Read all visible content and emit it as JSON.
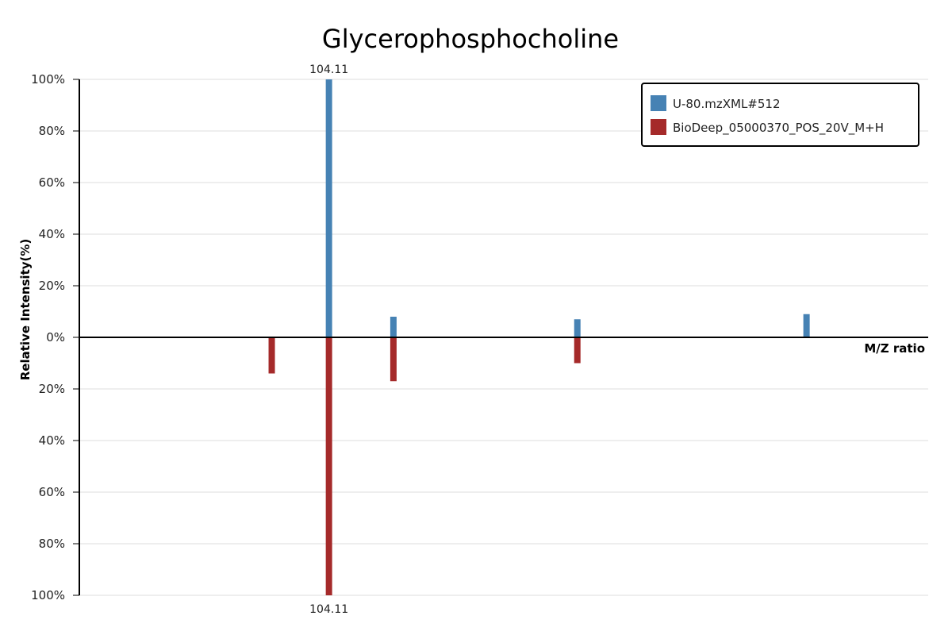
{
  "chart_data": {
    "type": "bar",
    "title": "Glycerophosphocholine",
    "xlabel": "M/Z ratio",
    "ylabel": "Relative Intensity(%)",
    "y_ticks_top": [
      "100%",
      "80%",
      "60%",
      "40%",
      "20%",
      "0%"
    ],
    "y_ticks_bottom": [
      "20%",
      "40%",
      "60%",
      "80%",
      "100%"
    ],
    "ylim": [
      -100,
      100
    ],
    "xlim": [
      60,
      210
    ],
    "grid": true,
    "legend_position": "top-right",
    "series": [
      {
        "name": "U-80.mzXML#512",
        "color": "#4682b4",
        "direction": "up",
        "peaks": [
          {
            "mz": 104.11,
            "intensity": 100,
            "label": "104.11"
          },
          {
            "mz": 115.5,
            "intensity": 8,
            "label": ""
          },
          {
            "mz": 148.0,
            "intensity": 7,
            "label": ""
          },
          {
            "mz": 188.5,
            "intensity": 9,
            "label": ""
          }
        ]
      },
      {
        "name": "BioDeep_05000370_POS_20V_M+H",
        "color": "#a52a2a",
        "direction": "down",
        "peaks": [
          {
            "mz": 94.0,
            "intensity": 14,
            "label": ""
          },
          {
            "mz": 104.11,
            "intensity": 100,
            "label": "104.11"
          },
          {
            "mz": 115.5,
            "intensity": 17,
            "label": ""
          },
          {
            "mz": 148.0,
            "intensity": 10,
            "label": ""
          }
        ]
      }
    ]
  }
}
